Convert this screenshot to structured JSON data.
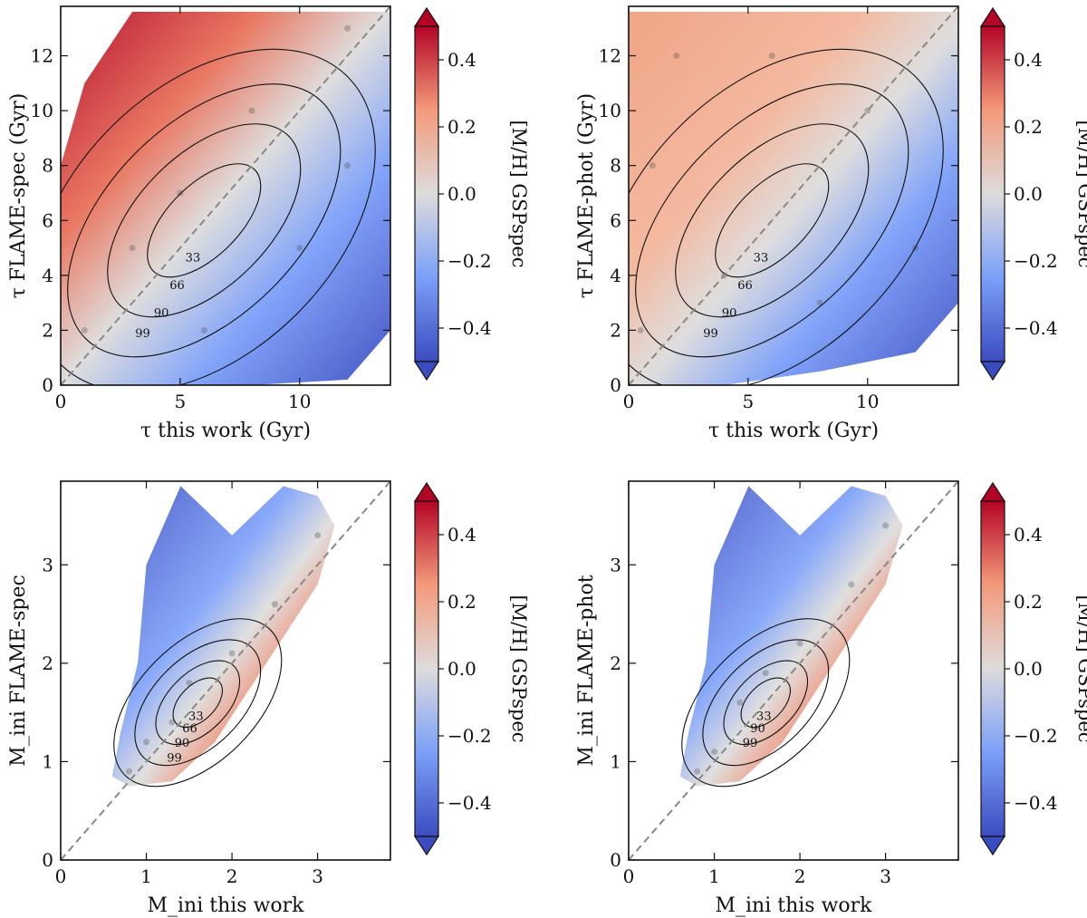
{
  "chart_data": [
    {
      "type": "scatter",
      "panel": "top-left",
      "title": "",
      "xlabel": "τ this work (Gyr)",
      "ylabel": "τ FLAME-spec (Gyr)",
      "xlim": [
        0,
        13.8
      ],
      "ylim": [
        0,
        13.8
      ],
      "xticks": [
        0,
        5,
        10
      ],
      "yticks": [
        0,
        2,
        4,
        6,
        8,
        10,
        12
      ],
      "colorbar": {
        "label": "[M/H] GSPspec",
        "range": [
          -0.5,
          0.5
        ],
        "ticks": [
          -0.4,
          -0.2,
          0.0,
          0.2,
          0.4
        ],
        "cmap": "coolwarm",
        "extend": "both"
      },
      "reference_line": "y = x (dashed)",
      "contour_levels": [
        "33",
        "66",
        "90",
        "99"
      ],
      "points": [
        [
          0,
          0
        ],
        [
          1,
          2
        ],
        [
          3,
          5
        ],
        [
          5,
          7
        ],
        [
          8,
          10
        ],
        [
          12,
          13
        ],
        [
          6,
          2
        ],
        [
          10,
          5
        ],
        [
          12,
          8
        ]
      ]
    },
    {
      "type": "scatter",
      "panel": "top-right",
      "title": "",
      "xlabel": "τ this work (Gyr)",
      "ylabel": "τ FLAME-phot (Gyr)",
      "xlim": [
        0,
        13.8
      ],
      "ylim": [
        0,
        13.8
      ],
      "xticks": [
        0,
        5,
        10
      ],
      "yticks": [
        0,
        2,
        4,
        6,
        8,
        10,
        12
      ],
      "colorbar": {
        "label": "[M/H] GSPspec",
        "range": [
          -0.5,
          0.5
        ],
        "ticks": [
          -0.4,
          -0.2,
          0.0,
          0.2,
          0.4
        ],
        "cmap": "coolwarm",
        "extend": "both"
      },
      "reference_line": "y = x (dashed)",
      "contour_levels": [
        "33",
        "66",
        "90",
        "99"
      ],
      "points": [
        [
          0.5,
          2
        ],
        [
          1,
          8
        ],
        [
          2,
          12
        ],
        [
          4,
          4
        ],
        [
          6,
          12
        ],
        [
          10,
          10
        ],
        [
          8,
          3
        ],
        [
          12,
          5
        ]
      ]
    },
    {
      "type": "scatter",
      "panel": "bottom-left",
      "title": "",
      "xlabel": "M_ini this work",
      "ylabel": "M_ini FLAME-spec",
      "xlim": [
        0,
        3.85
      ],
      "ylim": [
        0,
        3.85
      ],
      "xticks": [
        0,
        1,
        2,
        3
      ],
      "yticks": [
        0,
        1,
        2,
        3
      ],
      "colorbar": {
        "label": "[M/H] GSPspec",
        "range": [
          -0.5,
          0.5
        ],
        "ticks": [
          -0.4,
          -0.2,
          0.0,
          0.2,
          0.4
        ],
        "cmap": "coolwarm",
        "extend": "both"
      },
      "reference_line": "y = x (dashed)",
      "contour_levels": [
        "33",
        "66",
        "90",
        "99"
      ],
      "points": [
        [
          0.8,
          0.9
        ],
        [
          1.0,
          1.2
        ],
        [
          1.3,
          1.4
        ],
        [
          1.5,
          1.8
        ],
        [
          2.0,
          2.1
        ],
        [
          2.5,
          2.6
        ],
        [
          3.0,
          3.3
        ]
      ]
    },
    {
      "type": "scatter",
      "panel": "bottom-right",
      "title": "",
      "xlabel": "M_ini this work",
      "ylabel": "M_ini FLAME-phot",
      "xlim": [
        0,
        3.85
      ],
      "ylim": [
        0,
        3.85
      ],
      "xticks": [
        0,
        1,
        2,
        3
      ],
      "yticks": [
        0,
        1,
        2,
        3
      ],
      "colorbar": {
        "label": "[M/H] GSPspec",
        "range": [
          -0.5,
          0.5
        ],
        "ticks": [
          -0.4,
          -0.2,
          0.0,
          0.2,
          0.4
        ],
        "cmap": "coolwarm",
        "extend": "both"
      },
      "reference_line": "y = x (dashed)",
      "contour_levels": [
        "33",
        "90",
        "99"
      ],
      "points": [
        [
          0.8,
          0.9
        ],
        [
          1.0,
          1.1
        ],
        [
          1.3,
          1.6
        ],
        [
          1.6,
          1.9
        ],
        [
          2.0,
          2.2
        ],
        [
          2.6,
          2.8
        ],
        [
          3.0,
          3.4
        ]
      ]
    }
  ]
}
